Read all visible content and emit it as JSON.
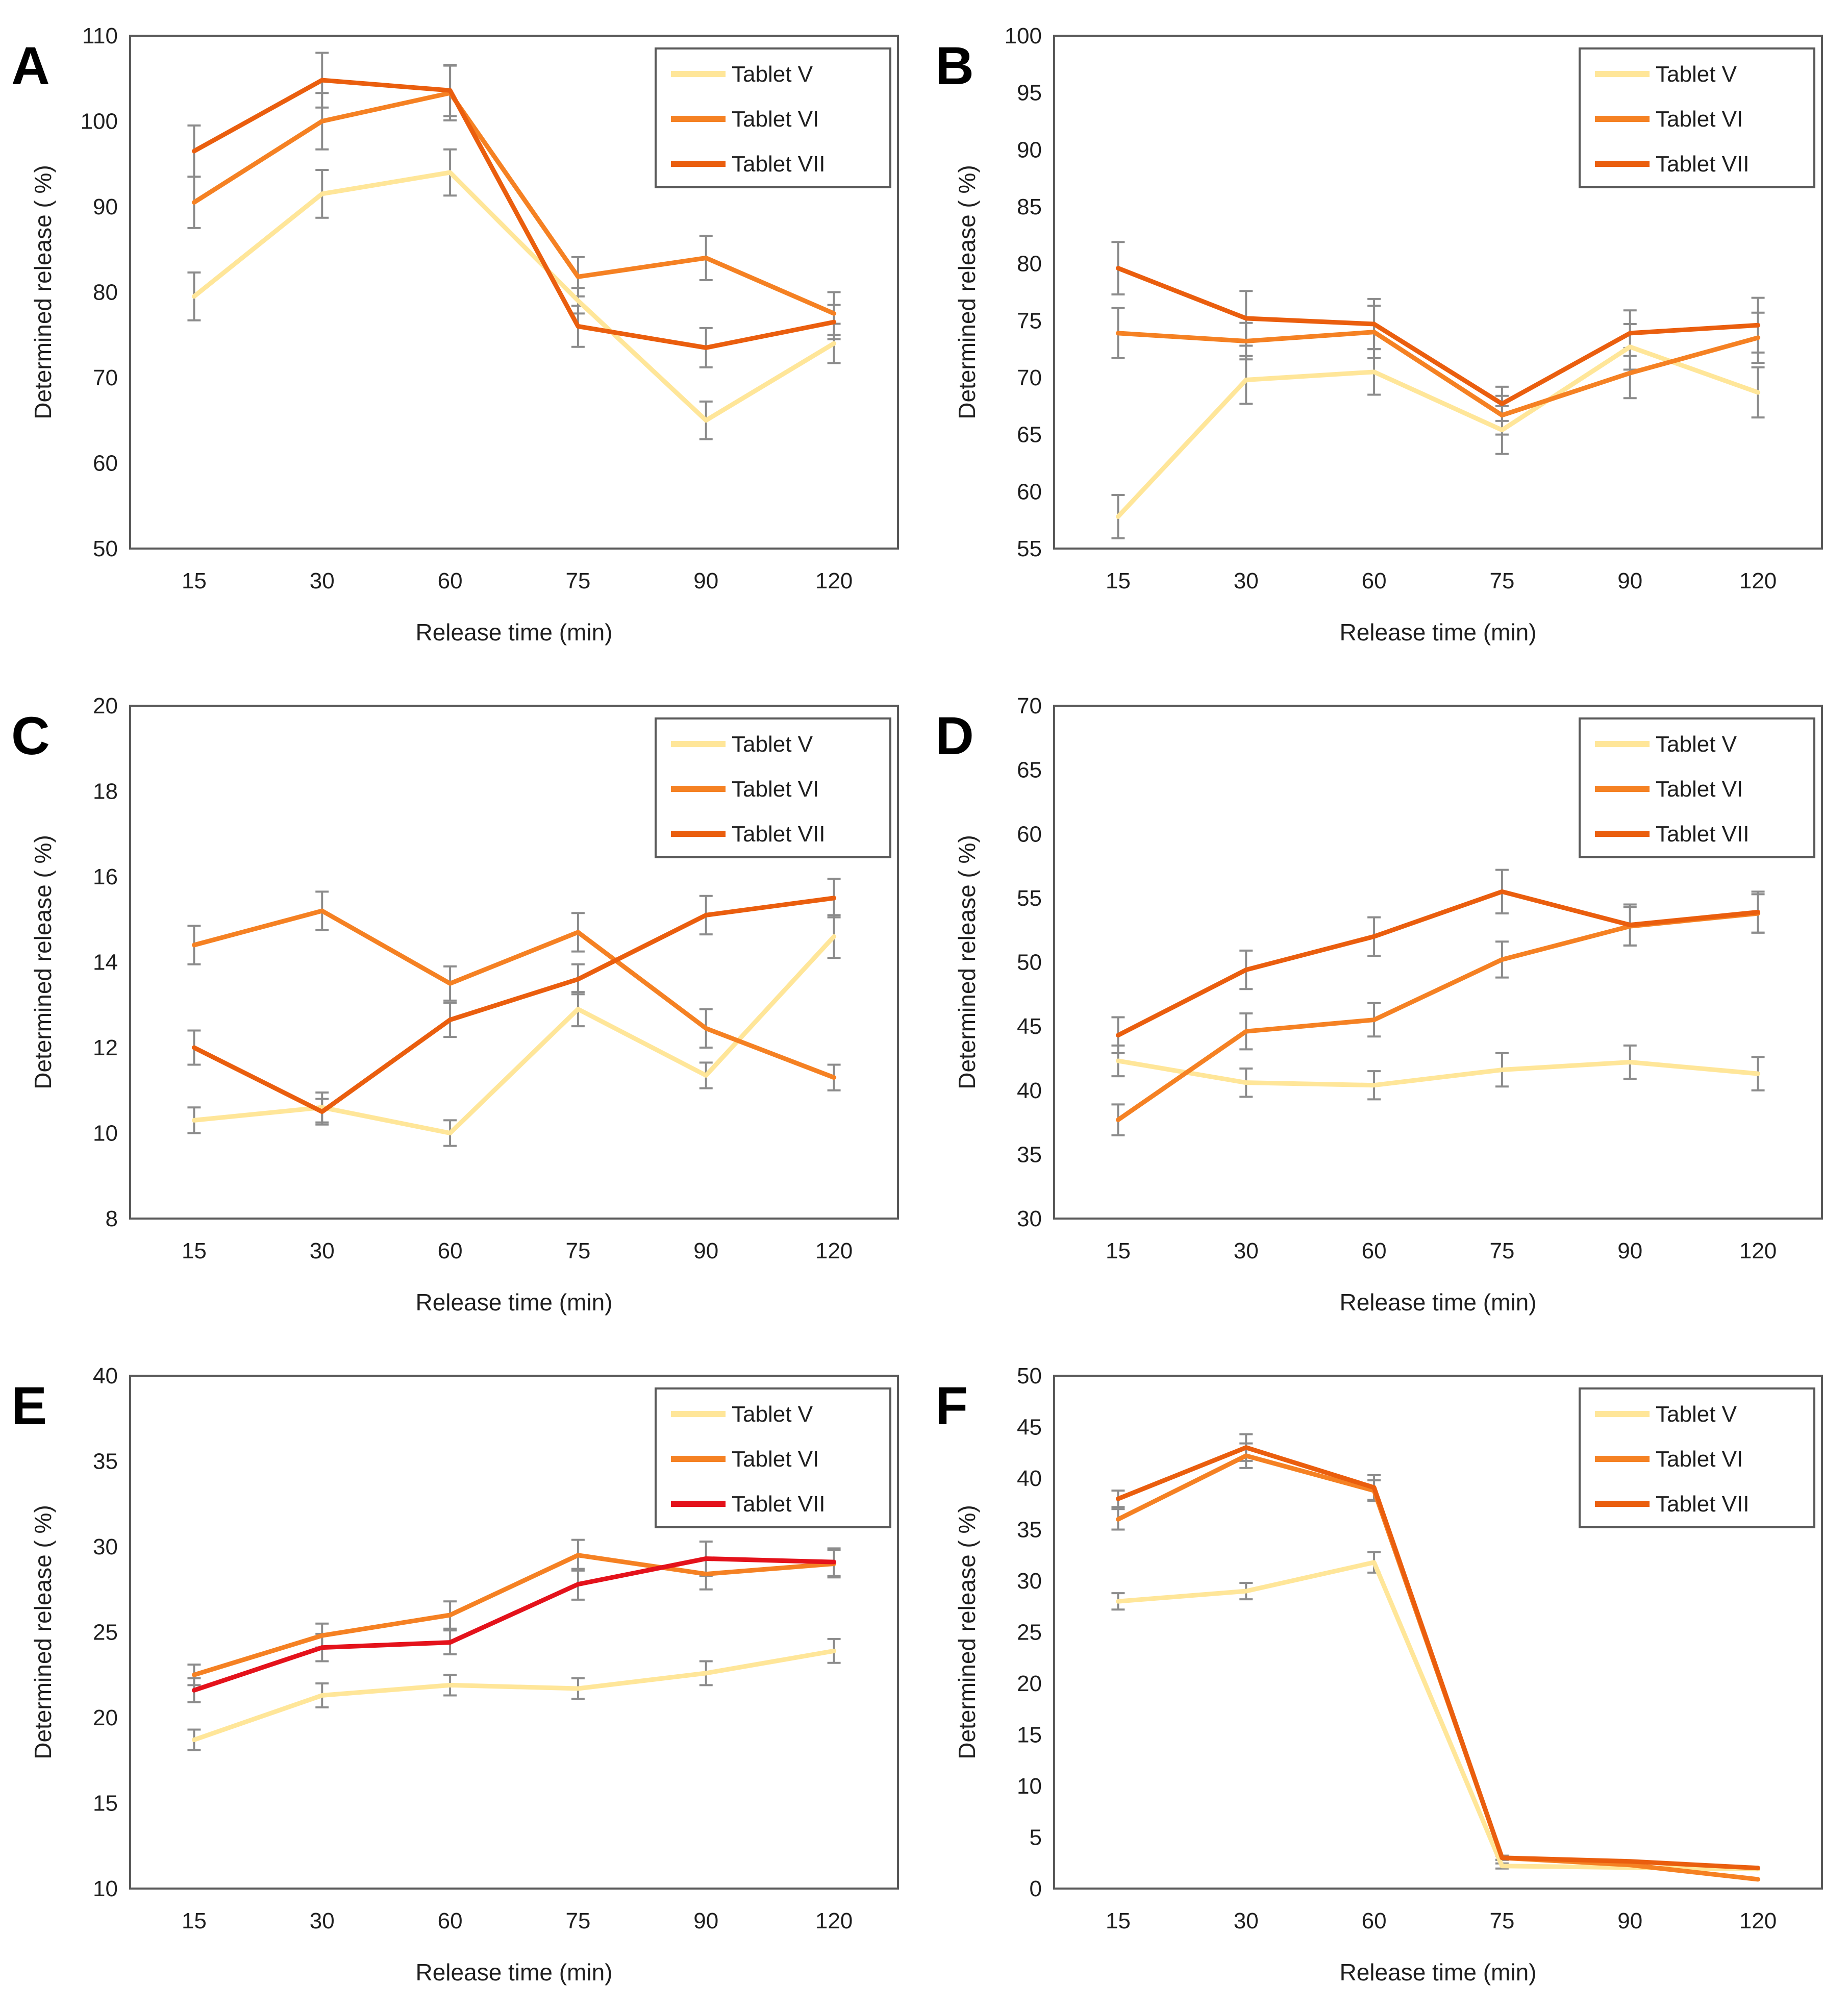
{
  "chart_data": {
    "type": "line",
    "x_categories": [
      "15",
      "30",
      "60",
      "75",
      "90",
      "120"
    ],
    "xlabel": "Release time (min)",
    "ylabel": "Determined release ( %)",
    "legend_position": "top-right",
    "error_bars": true,
    "colors": {
      "axis": "#595959",
      "error_bar": "#8c8c8c",
      "text": "#1f1f1f",
      "background": "#ffffff",
      "tablet_v": "#FFE699",
      "tablet_vi": "#F58123",
      "tablet_vii": "#EA5E0E",
      "tablet_vii_red": "#E4121B"
    },
    "panels": [
      {
        "label": "A",
        "ylim": [
          50,
          110
        ],
        "yticks": [
          50,
          60,
          70,
          80,
          90,
          100,
          110
        ],
        "series": [
          {
            "name": "Tablet V",
            "color": "#FFE699",
            "values": [
              79.5,
              91.5,
              94.0,
              79.0,
              65.0,
              74.0
            ],
            "errors": [
              2.8,
              2.8,
              2.7,
              1.5,
              2.2,
              2.3
            ]
          },
          {
            "name": "Tablet VI",
            "color": "#F58123",
            "values": [
              90.5,
              100.0,
              103.3,
              81.8,
              84.0,
              77.5
            ],
            "errors": [
              3.0,
              3.3,
              3.2,
              2.3,
              2.6,
              2.5
            ]
          },
          {
            "name": "Tablet VII",
            "color": "#EA5E0E",
            "values": [
              96.5,
              104.8,
              103.6,
              76.0,
              73.5,
              76.5
            ],
            "errors": [
              3.0,
              3.2,
              3.0,
              2.4,
              2.3,
              2.0
            ]
          }
        ]
      },
      {
        "label": "B",
        "ylim": [
          55,
          100
        ],
        "yticks": [
          55,
          60,
          65,
          70,
          75,
          80,
          85,
          90,
          95,
          100
        ],
        "series": [
          {
            "name": "Tablet V",
            "color": "#FFE699",
            "values": [
              57.8,
              69.8,
              70.5,
              65.4,
              72.7,
              68.7
            ],
            "errors": [
              1.9,
              2.1,
              2.0,
              2.1,
              2.0,
              2.2
            ]
          },
          {
            "name": "Tablet VI",
            "color": "#F58123",
            "values": [
              73.9,
              73.2,
              74.0,
              66.7,
              70.4,
              73.5
            ],
            "errors": [
              2.2,
              1.6,
              2.3,
              1.7,
              2.2,
              2.2
            ]
          },
          {
            "name": "Tablet VII",
            "color": "#EA5E0E",
            "values": [
              79.6,
              75.2,
              74.7,
              67.7,
              73.9,
              74.6
            ],
            "errors": [
              2.3,
              2.4,
              2.2,
              1.5,
              2.0,
              2.4
            ]
          }
        ]
      },
      {
        "label": "C",
        "ylim": [
          8,
          20
        ],
        "yticks": [
          8,
          10,
          12,
          14,
          16,
          18,
          20
        ],
        "series": [
          {
            "name": "Tablet V",
            "color": "#FFE699",
            "values": [
              10.3,
              10.6,
              10.0,
              12.9,
              11.35,
              14.6
            ],
            "errors": [
              0.3,
              0.35,
              0.3,
              0.4,
              0.3,
              0.5
            ]
          },
          {
            "name": "Tablet VI",
            "color": "#F58123",
            "values": [
              14.4,
              15.2,
              13.5,
              14.7,
              12.45,
              11.3
            ],
            "errors": [
              0.45,
              0.45,
              0.4,
              0.45,
              0.45,
              0.3
            ]
          },
          {
            "name": "Tablet VII",
            "color": "#EA5E0E",
            "values": [
              12.0,
              10.5,
              12.65,
              13.6,
              15.1,
              15.5
            ],
            "errors": [
              0.4,
              0.3,
              0.4,
              0.35,
              0.45,
              0.45
            ]
          }
        ]
      },
      {
        "label": "D",
        "ylim": [
          30,
          70
        ],
        "yticks": [
          30,
          35,
          40,
          45,
          50,
          55,
          60,
          65,
          70
        ],
        "series": [
          {
            "name": "Tablet V",
            "color": "#FFE699",
            "values": [
              42.3,
              40.6,
              40.4,
              41.6,
              42.2,
              41.3
            ],
            "errors": [
              1.2,
              1.1,
              1.1,
              1.3,
              1.3,
              1.3
            ]
          },
          {
            "name": "Tablet VI",
            "color": "#F58123",
            "values": [
              37.7,
              44.6,
              45.5,
              50.2,
              52.8,
              53.8
            ],
            "errors": [
              1.2,
              1.4,
              1.3,
              1.4,
              1.5,
              1.5
            ]
          },
          {
            "name": "Tablet VII",
            "color": "#EA5E0E",
            "values": [
              44.3,
              49.4,
              52.0,
              55.5,
              52.9,
              53.9
            ],
            "errors": [
              1.4,
              1.5,
              1.5,
              1.7,
              1.6,
              1.6
            ]
          }
        ]
      },
      {
        "label": "E",
        "ylim": [
          10,
          40
        ],
        "yticks": [
          10,
          15,
          20,
          25,
          30,
          35,
          40
        ],
        "series": [
          {
            "name": "Tablet V",
            "color": "#FFE699",
            "values": [
              18.7,
              21.3,
              21.9,
              21.7,
              22.6,
              23.9
            ],
            "errors": [
              0.6,
              0.7,
              0.6,
              0.6,
              0.7,
              0.7
            ]
          },
          {
            "name": "Tablet VI",
            "color": "#F58123",
            "values": [
              22.5,
              24.8,
              26.0,
              29.5,
              28.4,
              29.0
            ],
            "errors": [
              0.6,
              0.7,
              0.8,
              0.9,
              0.9,
              0.8
            ]
          },
          {
            "name": "Tablet VII",
            "color": "#E4121B",
            "values": [
              21.6,
              24.1,
              24.4,
              27.8,
              29.3,
              29.1
            ],
            "errors": [
              0.7,
              0.8,
              0.7,
              0.9,
              1.0,
              0.8
            ]
          }
        ]
      },
      {
        "label": "F",
        "ylim": [
          0,
          50
        ],
        "yticks": [
          0,
          5,
          10,
          15,
          20,
          25,
          30,
          35,
          40,
          45,
          50
        ],
        "series": [
          {
            "name": "Tablet V",
            "color": "#FFE699",
            "values": [
              28.0,
              29.0,
              31.8,
              2.2,
              2.05,
              1.9
            ],
            "errors": [
              0.8,
              0.8,
              1.0,
              0.25,
              0,
              0
            ]
          },
          {
            "name": "Tablet VI",
            "color": "#F58123",
            "values": [
              36.0,
              42.2,
              38.8,
              3.0,
              2.3,
              0.9
            ],
            "errors": [
              1.0,
              1.2,
              1.0,
              0.2,
              0,
              0
            ]
          },
          {
            "name": "Tablet VII",
            "color": "#EA5E0E",
            "values": [
              38.0,
              43.0,
              39.1,
              3.0,
              2.65,
              2.0
            ],
            "errors": [
              0.8,
              1.3,
              1.2,
              0.2,
              0,
              0
            ]
          }
        ]
      }
    ]
  }
}
